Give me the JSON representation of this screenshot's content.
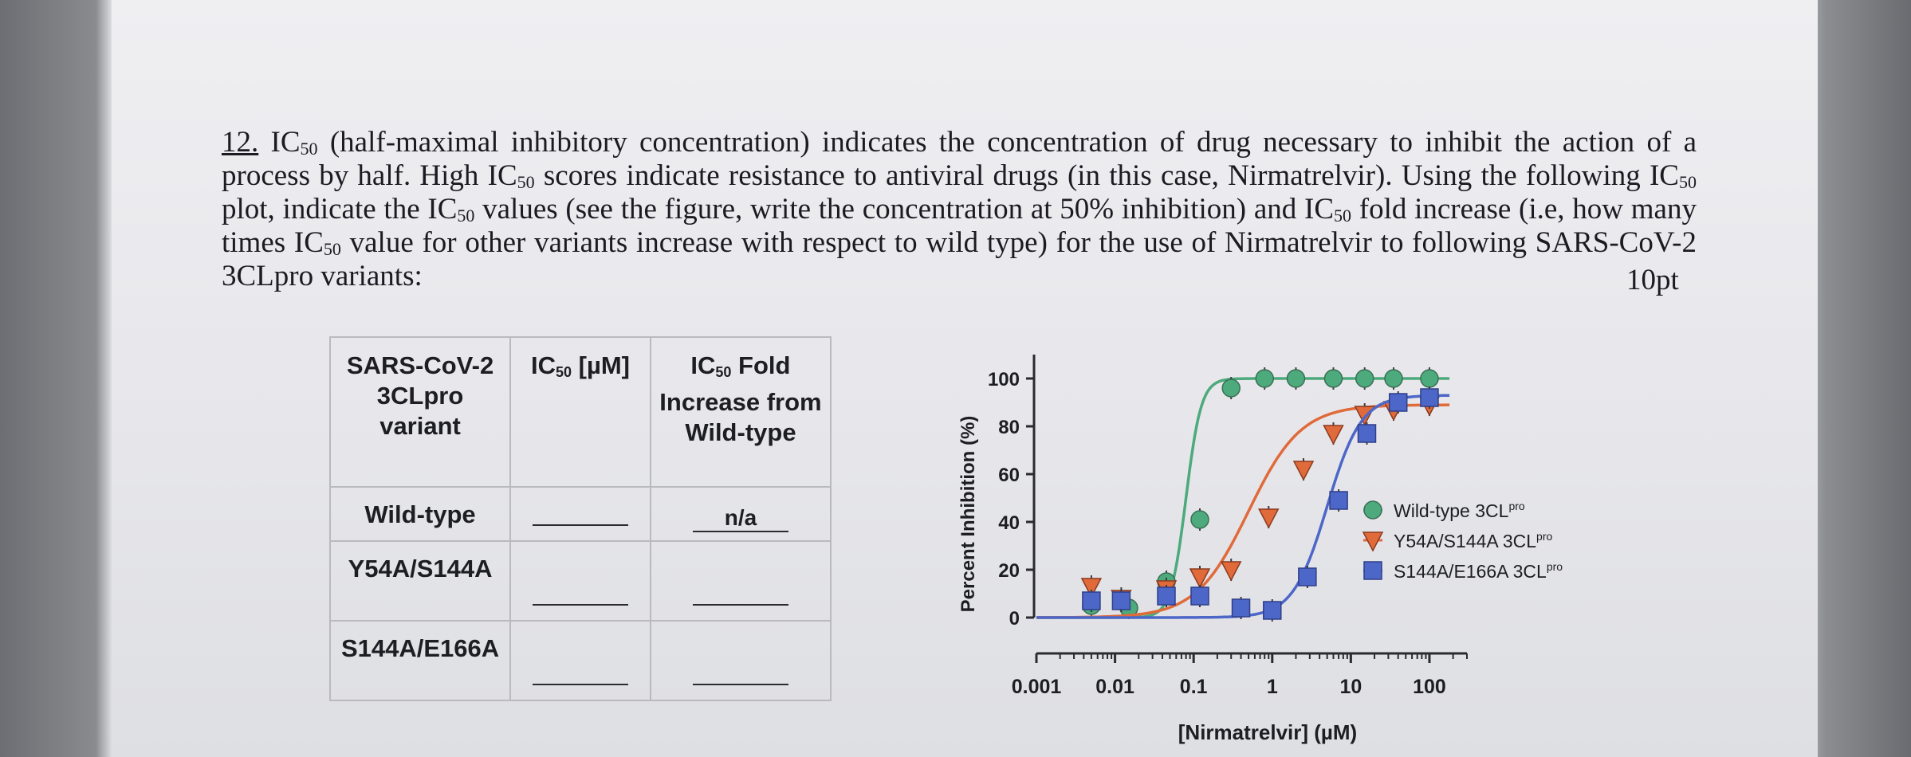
{
  "question": {
    "number": "12.",
    "ic": "IC",
    "sub": "50",
    "seg1": " (half-maximal inhibitory concentration) indicates the concentration of drug necessary to inhibit the action of a process by half. High ",
    "seg2": " scores indicate resistance to antiviral drugs (in this case, Nirmatrelvir). Using the following ",
    "seg3": " plot, indicate the ",
    "seg4": " values (see the figure, write the concentration at 50% inhibition) and ",
    "seg5": " fold increase (i.e, how many times ",
    "seg6": " value for other variants increase with respect to wild type) for the use of Nirmatrelvir to following SARS-CoV-2 3CLpro variants:",
    "points": "10pt"
  },
  "table": {
    "col1": "SARS-CoV-2 3CLpro variant",
    "col2_main": "IC",
    "col2_sub": "50",
    "col2_unit": " [µM]",
    "col3_main": "IC",
    "col3_sub": "50",
    "col3_rest": " Fold Increase from Wild-type",
    "rows": [
      {
        "variant": "Wild-type",
        "fold": "n/a"
      },
      {
        "variant": "Y54A/S144A",
        "fold": ""
      },
      {
        "variant": "S144A/E166A",
        "fold": ""
      }
    ]
  },
  "chart_data": {
    "type": "scatter",
    "title": "",
    "xlabel": "[Nirmatrelvir] (µM)",
    "ylabel": "Percent Inhibition (%)",
    "xscale": "log",
    "xlim": [
      0.001,
      300
    ],
    "ylim": [
      -10,
      110
    ],
    "x_ticks": [
      {
        "value": 0.001,
        "label": "0.001"
      },
      {
        "value": 0.01,
        "label": "0.01"
      },
      {
        "value": 0.1,
        "label": "0.1"
      },
      {
        "value": 1,
        "label": "1"
      },
      {
        "value": 10,
        "label": "10"
      },
      {
        "value": 100,
        "label": "100"
      }
    ],
    "y_ticks": [
      0,
      20,
      40,
      60,
      80,
      100
    ],
    "legend_position": "right",
    "series": [
      {
        "name": "Wild-type 3CL",
        "name_sup": "pro",
        "color": "#4caa7c",
        "marker": "circle",
        "fit": {
          "bottom": 0,
          "top": 100,
          "ic50": 0.08,
          "hill": 4.5
        },
        "x": [
          0.005,
          0.015,
          0.045,
          0.12,
          0.3,
          0.8,
          2,
          6,
          15,
          35,
          100
        ],
        "y": [
          5,
          4,
          15,
          41,
          96,
          100,
          100,
          100,
          100,
          100,
          100
        ]
      },
      {
        "name": "Y54A/S144A 3CL",
        "name_sup": "pro",
        "color": "#e06a3a",
        "marker": "triangle-down",
        "fit": {
          "bottom": 0,
          "top": 89,
          "ic50": 0.5,
          "hill": 1.3
        },
        "x": [
          0.005,
          0.012,
          0.045,
          0.12,
          0.3,
          0.9,
          2.5,
          6,
          15,
          35,
          100
        ],
        "y": [
          13,
          8,
          12,
          17,
          20,
          42,
          62,
          77,
          85,
          87,
          89
        ]
      },
      {
        "name": "S144A/E166A 3CL",
        "name_sup": "pro",
        "color": "#4d67c9",
        "marker": "square",
        "fit": {
          "bottom": 0,
          "top": 93,
          "ic50": 5,
          "hill": 2.0
        },
        "x": [
          0.005,
          0.012,
          0.045,
          0.12,
          0.4,
          1.0,
          2.8,
          7,
          16,
          40,
          100
        ],
        "y": [
          7,
          7,
          9,
          9,
          4,
          3,
          17,
          49,
          77,
          90,
          92
        ]
      }
    ]
  }
}
